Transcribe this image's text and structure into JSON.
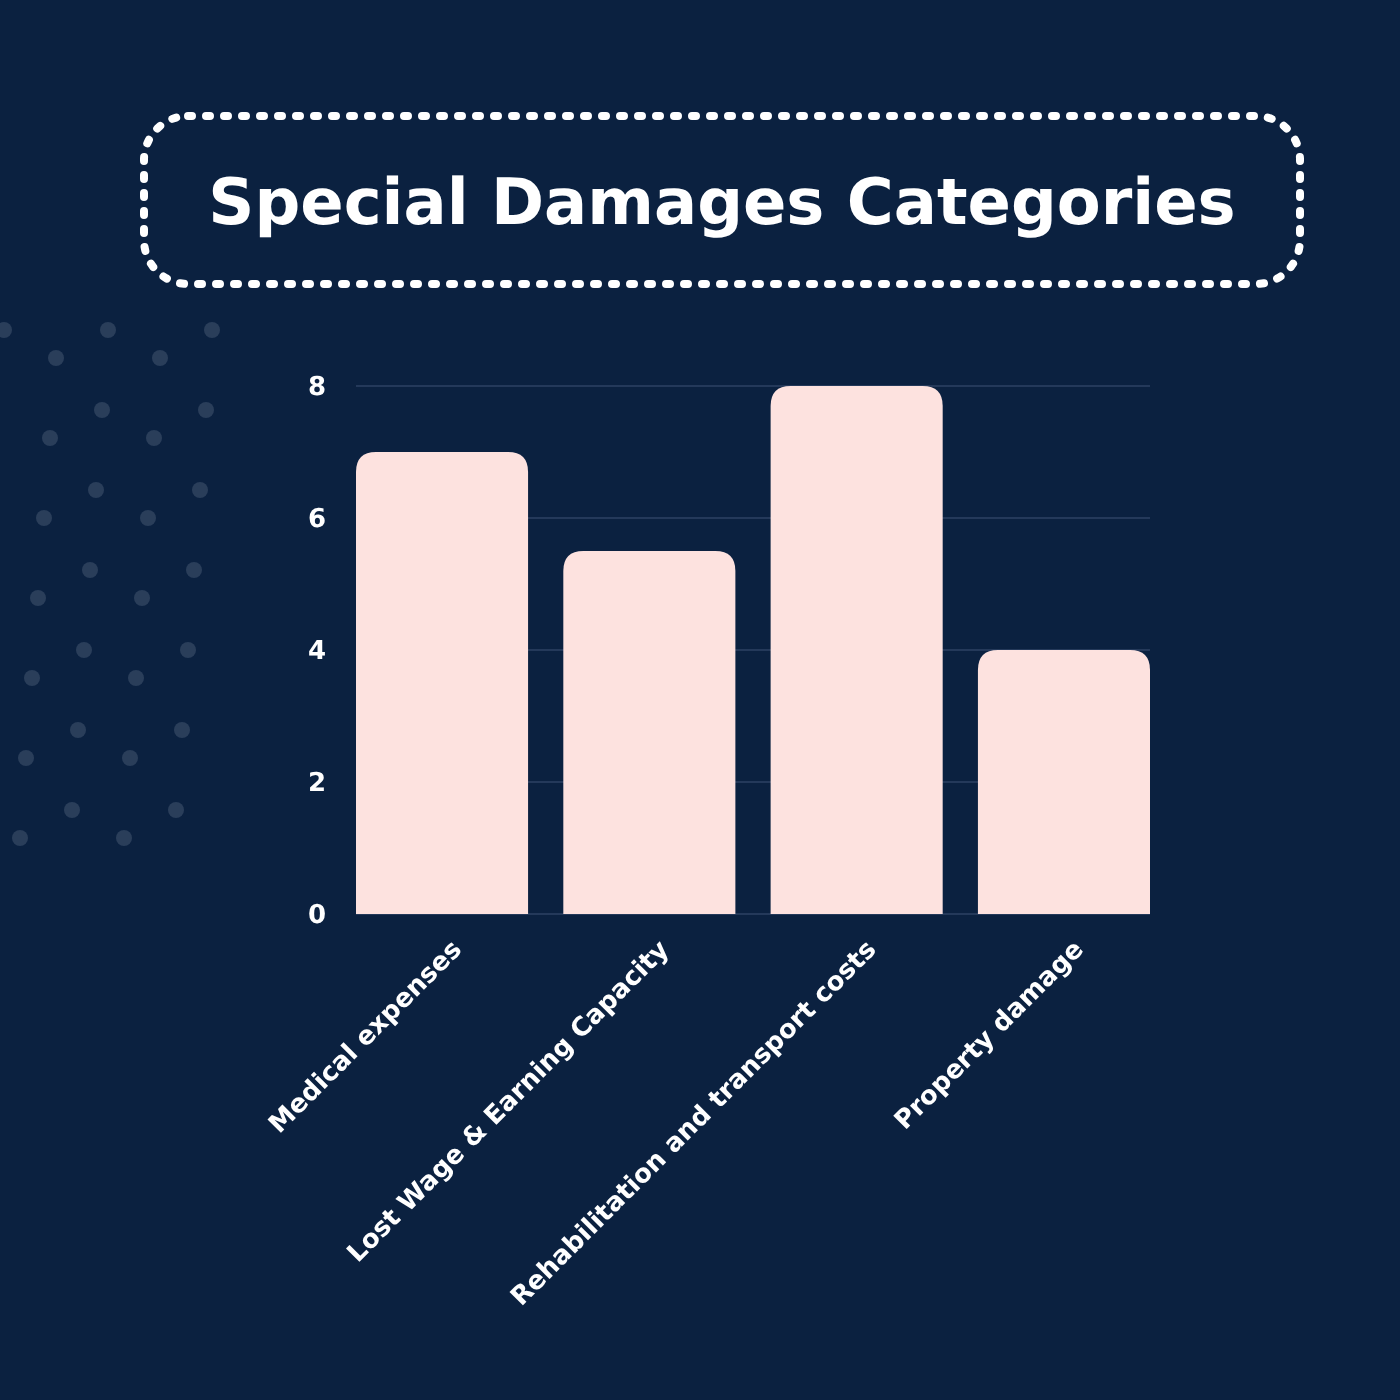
{
  "chart_data": {
    "type": "bar",
    "title": "Special Damages Categories",
    "categories": [
      "Medical expenses",
      "Lost Wage & Earning Capacity",
      "Rehabilitation and transport costs",
      "Property damage"
    ],
    "values": [
      7,
      5.5,
      8,
      4
    ],
    "color": "#fde2df",
    "ylim": [
      0,
      8
    ],
    "yticks": [
      0,
      2,
      4,
      6,
      8
    ],
    "grid": "y"
  }
}
